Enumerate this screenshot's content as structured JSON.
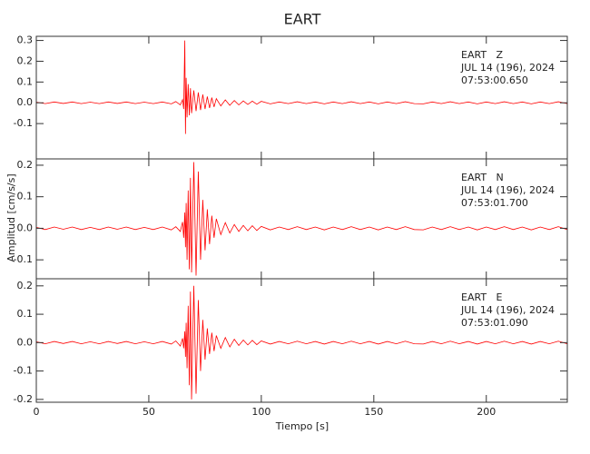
{
  "title": "EART",
  "y_label": "Amplitud [cm/s/s]",
  "chart_data": [
    {
      "type": "line",
      "color": "#ff0000",
      "annotations": [
        "EART   Z",
        "JUL 14 (196), 2024",
        "07:53:00.650"
      ],
      "xlim": [
        0,
        236
      ],
      "xticks": [
        0,
        50,
        100,
        150,
        200
      ],
      "ylim": [
        -0.27,
        0.32
      ],
      "yticks": [
        0.3,
        0.2,
        0.1,
        {
          "value": 0,
          "label": "0.0"
        },
        -0.1
      ],
      "x": [
        0,
        4,
        8,
        12,
        16,
        20,
        24,
        28,
        32,
        36,
        40,
        44,
        48,
        52,
        56,
        60,
        62,
        64,
        65,
        65.5,
        66,
        66.3,
        66.6,
        67,
        67.5,
        68,
        68.5,
        69,
        70,
        71,
        72,
        73,
        74,
        75,
        76,
        77,
        78,
        79,
        80,
        82,
        84,
        86,
        88,
        90,
        92,
        94,
        96,
        98,
        100,
        104,
        108,
        112,
        116,
        120,
        124,
        128,
        132,
        136,
        140,
        144,
        148,
        152,
        156,
        160,
        164,
        168,
        172,
        176,
        180,
        184,
        188,
        192,
        196,
        200,
        204,
        208,
        212,
        216,
        220,
        224,
        228,
        232,
        236
      ],
      "values": [
        0.003,
        -0.004,
        0.004,
        -0.003,
        0.004,
        -0.004,
        0.003,
        -0.004,
        0.004,
        -0.003,
        0.004,
        -0.004,
        0.003,
        -0.004,
        0.004,
        -0.005,
        0.006,
        -0.01,
        0.015,
        -0.03,
        0.3,
        -0.15,
        0.12,
        -0.07,
        0.09,
        -0.06,
        0.07,
        -0.05,
        0.06,
        -0.04,
        0.05,
        -0.035,
        0.04,
        -0.03,
        0.03,
        -0.025,
        0.025,
        -0.02,
        0.02,
        -0.015,
        0.014,
        -0.012,
        0.011,
        -0.01,
        0.009,
        -0.008,
        0.008,
        -0.007,
        0.007,
        -0.005,
        0.004,
        -0.004,
        0.005,
        -0.004,
        0.004,
        -0.005,
        0.004,
        -0.004,
        0.005,
        -0.004,
        0.004,
        -0.005,
        0.004,
        -0.004,
        0.005,
        -0.004,
        -0.005,
        0.004,
        -0.004,
        0.005,
        -0.004,
        0.004,
        -0.005,
        0.004,
        -0.004,
        0.005,
        -0.004,
        0.004,
        -0.005,
        0.004,
        -0.004,
        0.005,
        -0.004
      ]
    },
    {
      "type": "line",
      "color": "#ff0000",
      "annotations": [
        "EART   N",
        "JUL 14 (196), 2024",
        "07:53:01.700"
      ],
      "xlim": [
        0,
        236
      ],
      "xticks": [
        0,
        50,
        100,
        150,
        200
      ],
      "ylim": [
        -0.16,
        0.22
      ],
      "yticks": [
        0.2,
        0.1,
        {
          "value": 0,
          "label": "0.0"
        },
        -0.1
      ],
      "x": [
        0,
        4,
        8,
        12,
        16,
        20,
        24,
        28,
        32,
        36,
        40,
        44,
        48,
        52,
        56,
        60,
        62,
        64,
        65,
        65.5,
        66,
        66.3,
        66.6,
        67,
        67.5,
        68,
        68.5,
        69,
        70,
        71,
        72,
        73,
        74,
        75,
        76,
        77,
        78,
        79,
        80,
        82,
        84,
        86,
        88,
        90,
        92,
        94,
        96,
        98,
        100,
        104,
        108,
        112,
        116,
        120,
        124,
        128,
        132,
        136,
        140,
        144,
        148,
        152,
        156,
        160,
        164,
        168,
        172,
        176,
        180,
        184,
        188,
        192,
        196,
        200,
        204,
        208,
        212,
        216,
        220,
        224,
        228,
        232,
        236
      ],
      "values": [
        0.003,
        -0.004,
        0.004,
        -0.003,
        0.004,
        -0.004,
        0.003,
        -0.004,
        0.004,
        -0.003,
        0.004,
        -0.004,
        0.003,
        -0.004,
        0.004,
        -0.005,
        0.005,
        -0.01,
        0.02,
        -0.03,
        0.05,
        -0.06,
        0.08,
        -0.1,
        0.12,
        -0.13,
        0.16,
        -0.14,
        0.21,
        -0.15,
        0.18,
        -0.1,
        0.09,
        -0.07,
        0.06,
        -0.05,
        0.04,
        -0.03,
        0.03,
        -0.02,
        0.018,
        -0.015,
        0.012,
        -0.01,
        0.009,
        -0.008,
        0.008,
        -0.007,
        0.006,
        -0.005,
        0.004,
        -0.004,
        0.005,
        -0.004,
        0.004,
        -0.005,
        0.004,
        -0.004,
        0.005,
        -0.004,
        0.004,
        -0.005,
        0.004,
        -0.004,
        0.005,
        -0.004,
        -0.005,
        0.004,
        -0.004,
        0.005,
        -0.004,
        0.004,
        -0.005,
        0.004,
        -0.004,
        0.005,
        -0.004,
        0.004,
        -0.005,
        0.004,
        -0.004,
        0.005,
        -0.004
      ]
    },
    {
      "type": "line",
      "color": "#ff0000",
      "annotations": [
        "EART   E",
        "JUL 14 (196), 2024",
        "07:53:01.090"
      ],
      "xlim": [
        0,
        236
      ],
      "xticks": [
        0,
        50,
        100,
        150,
        200
      ],
      "xlabel": "Tiempo [s]",
      "ylim": [
        -0.21,
        0.225
      ],
      "yticks": [
        0.2,
        0.1,
        {
          "value": 0,
          "label": "0.0"
        },
        -0.1,
        -0.2
      ],
      "x": [
        0,
        4,
        8,
        12,
        16,
        20,
        24,
        28,
        32,
        36,
        40,
        44,
        48,
        52,
        56,
        60,
        62,
        64,
        65,
        65.5,
        66,
        66.3,
        66.6,
        67,
        67.5,
        68,
        68.5,
        69,
        70,
        71,
        72,
        73,
        74,
        75,
        76,
        77,
        78,
        79,
        80,
        82,
        84,
        86,
        88,
        90,
        92,
        94,
        96,
        98,
        100,
        104,
        108,
        112,
        116,
        120,
        124,
        128,
        132,
        136,
        140,
        144,
        148,
        152,
        156,
        160,
        164,
        168,
        172,
        176,
        180,
        184,
        188,
        192,
        196,
        200,
        204,
        208,
        212,
        216,
        220,
        224,
        228,
        232,
        236
      ],
      "values": [
        0.003,
        -0.004,
        0.004,
        -0.003,
        0.004,
        -0.004,
        0.003,
        -0.004,
        0.004,
        -0.003,
        0.004,
        -0.004,
        0.003,
        -0.004,
        0.004,
        -0.005,
        0.006,
        -0.012,
        0.015,
        -0.02,
        0.04,
        -0.05,
        0.07,
        -0.09,
        0.13,
        -0.15,
        0.18,
        -0.2,
        0.2,
        -0.18,
        0.15,
        -0.1,
        0.08,
        -0.06,
        0.05,
        -0.04,
        0.035,
        -0.03,
        0.025,
        -0.02,
        0.018,
        -0.015,
        0.012,
        -0.01,
        0.009,
        -0.008,
        0.008,
        -0.007,
        0.006,
        -0.005,
        0.004,
        -0.004,
        0.005,
        -0.004,
        0.004,
        -0.005,
        0.004,
        -0.004,
        0.005,
        -0.004,
        0.004,
        -0.005,
        0.004,
        -0.004,
        0.005,
        -0.004,
        -0.005,
        0.004,
        -0.004,
        0.005,
        -0.004,
        0.004,
        -0.005,
        0.004,
        -0.004,
        0.005,
        -0.004,
        0.004,
        -0.005,
        0.004,
        -0.004,
        0.005,
        -0.004
      ]
    }
  ]
}
